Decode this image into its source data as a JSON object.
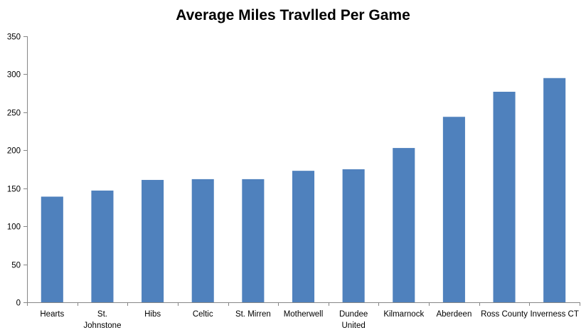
{
  "chart_data": {
    "type": "bar",
    "title": "Average Miles Travlled Per Game",
    "xlabel": "",
    "ylabel": "",
    "ylim": [
      0,
      350
    ],
    "yticks": [
      0,
      50,
      100,
      150,
      200,
      250,
      300,
      350
    ],
    "grid": false,
    "legend": "none",
    "bar_color": "#4F81BD",
    "categories": [
      [
        "Hearts"
      ],
      [
        "St.",
        "Johnstone"
      ],
      [
        "Hibs"
      ],
      [
        "Celtic"
      ],
      [
        "St. Mirren"
      ],
      [
        "Motherwell"
      ],
      [
        "Dundee",
        "United"
      ],
      [
        "Kilmarnock"
      ],
      [
        "Aberdeen"
      ],
      [
        "Ross County"
      ],
      [
        "Inverness CT"
      ]
    ],
    "values": [
      139,
      147,
      161,
      162,
      162,
      173,
      175,
      203,
      244,
      277,
      295
    ]
  }
}
